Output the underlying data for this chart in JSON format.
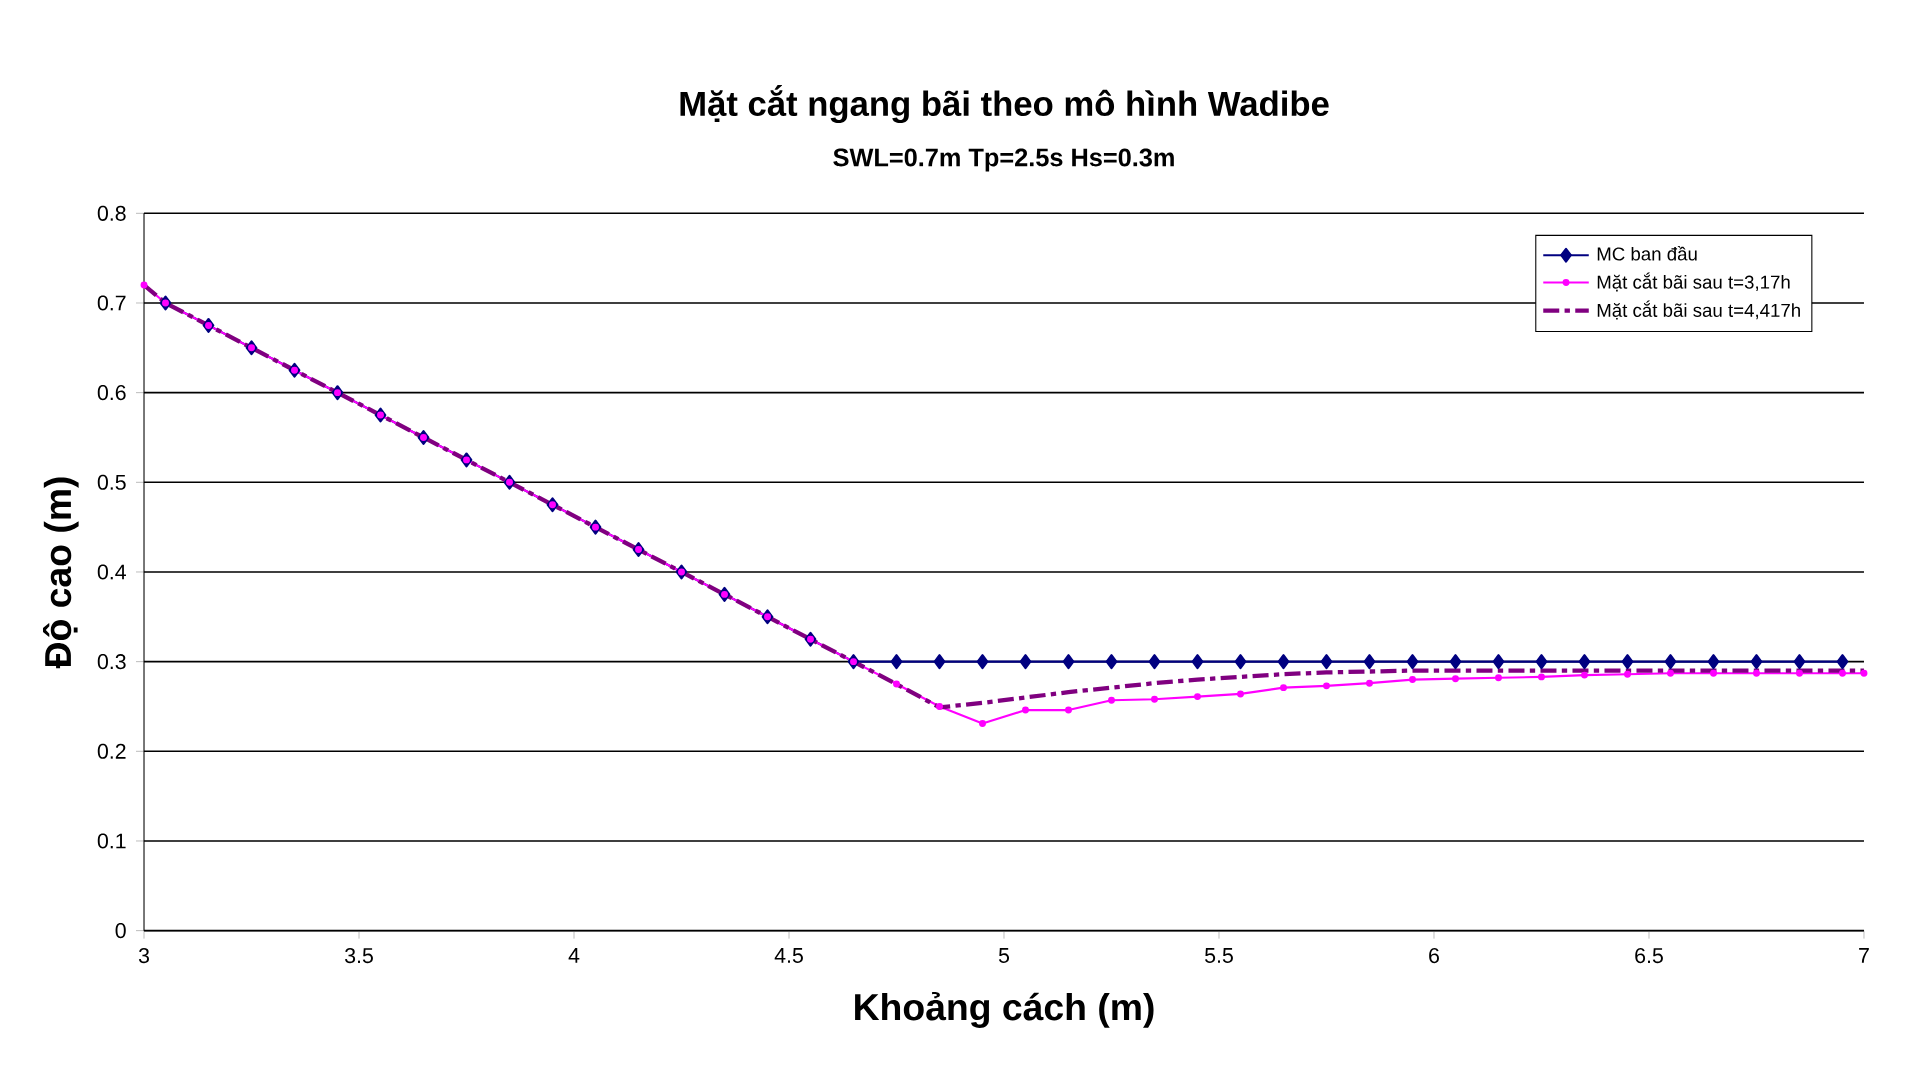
{
  "chart_data": {
    "type": "line",
    "title": "Mặt cắt ngang bãi theo mô hình Wadibe",
    "subtitle": "SWL=0.7m Tp=2.5s Hs=0.3m",
    "xlabel": "Khoảng cách (m)",
    "ylabel": "Độ cao (m)",
    "xlim": [
      3,
      7
    ],
    "xticks": [
      3,
      3.5,
      4,
      4.5,
      5,
      5.5,
      6,
      6.5,
      7
    ],
    "ylim": [
      0,
      0.8
    ],
    "yticks": [
      0,
      0.1,
      0.2,
      0.3,
      0.4,
      0.5,
      0.6,
      0.7,
      0.8
    ],
    "grid": "y",
    "legend": "top right",
    "series": [
      {
        "name": "MC ban đầu",
        "color": "#000080",
        "marker": "diamond",
        "line_style": "solid",
        "x": [
          3.05,
          3.15,
          3.25,
          3.35,
          3.45,
          3.55,
          3.65,
          3.75,
          3.85,
          3.95,
          4.05,
          4.15,
          4.25,
          4.35,
          4.45,
          4.55,
          4.65,
          4.75,
          4.85,
          4.95,
          5.05,
          5.15,
          5.25,
          5.35,
          5.45,
          5.55,
          5.65,
          5.75,
          5.85,
          5.95,
          6.05,
          6.15,
          6.25,
          6.35,
          6.45,
          6.55,
          6.65,
          6.75,
          6.85,
          6.95
        ],
        "values": [
          0.7,
          0.675,
          0.65,
          0.625,
          0.6,
          0.575,
          0.55,
          0.525,
          0.5,
          0.475,
          0.45,
          0.425,
          0.4,
          0.375,
          0.35,
          0.325,
          0.3,
          0.3,
          0.3,
          0.3,
          0.3,
          0.3,
          0.3,
          0.3,
          0.3,
          0.3,
          0.3,
          0.3,
          0.3,
          0.3,
          0.3,
          0.3,
          0.3,
          0.3,
          0.3,
          0.3,
          0.3,
          0.3,
          0.3,
          0.3
        ]
      },
      {
        "name": "Mặt cắt bãi sau t=3,17h",
        "color": "#ff00ff",
        "marker": "circle",
        "line_style": "solid",
        "x": [
          3,
          3.05,
          3.15,
          3.25,
          3.35,
          3.45,
          3.55,
          3.65,
          3.75,
          3.85,
          3.95,
          4.05,
          4.15,
          4.25,
          4.35,
          4.45,
          4.55,
          4.65,
          4.75,
          4.85,
          4.95,
          5.05,
          5.15,
          5.25,
          5.35,
          5.45,
          5.55,
          5.65,
          5.75,
          5.85,
          5.95,
          6.05,
          6.15,
          6.25,
          6.35,
          6.45,
          6.55,
          6.65,
          6.75,
          6.85,
          6.95,
          7
        ],
        "values": [
          0.72,
          0.7,
          0.675,
          0.65,
          0.625,
          0.6,
          0.575,
          0.55,
          0.525,
          0.5,
          0.475,
          0.45,
          0.425,
          0.4,
          0.375,
          0.35,
          0.325,
          0.3,
          0.275,
          0.25,
          0.231,
          0.246,
          0.246,
          0.257,
          0.258,
          0.261,
          0.264,
          0.271,
          0.273,
          0.276,
          0.28,
          0.281,
          0.282,
          0.283,
          0.285,
          0.286,
          0.287,
          0.287,
          0.287,
          0.287,
          0.287,
          0.287
        ]
      },
      {
        "name": "Mặt cắt bãi sau t=4,417h",
        "color": "#800080",
        "marker": "none",
        "line_style": "dashed",
        "x": [
          3,
          3.05,
          3.15,
          3.25,
          3.35,
          3.45,
          3.55,
          3.65,
          3.75,
          3.85,
          3.95,
          4.05,
          4.15,
          4.25,
          4.35,
          4.45,
          4.55,
          4.65,
          4.75,
          4.85,
          4.95,
          5.05,
          5.15,
          5.25,
          5.35,
          5.45,
          5.55,
          5.65,
          5.75,
          5.85,
          5.95,
          6.05,
          6.15,
          6.25,
          6.35,
          6.45,
          6.55,
          6.65,
          6.75,
          6.85,
          6.95,
          7
        ],
        "values": [
          0.72,
          0.7,
          0.675,
          0.65,
          0.625,
          0.6,
          0.575,
          0.55,
          0.525,
          0.5,
          0.475,
          0.45,
          0.425,
          0.4,
          0.375,
          0.35,
          0.325,
          0.3,
          0.275,
          0.249,
          0.254,
          0.26,
          0.266,
          0.271,
          0.276,
          0.28,
          0.283,
          0.286,
          0.288,
          0.289,
          0.29,
          0.29,
          0.29,
          0.29,
          0.29,
          0.29,
          0.29,
          0.29,
          0.29,
          0.29,
          0.29,
          0.29
        ]
      }
    ]
  }
}
